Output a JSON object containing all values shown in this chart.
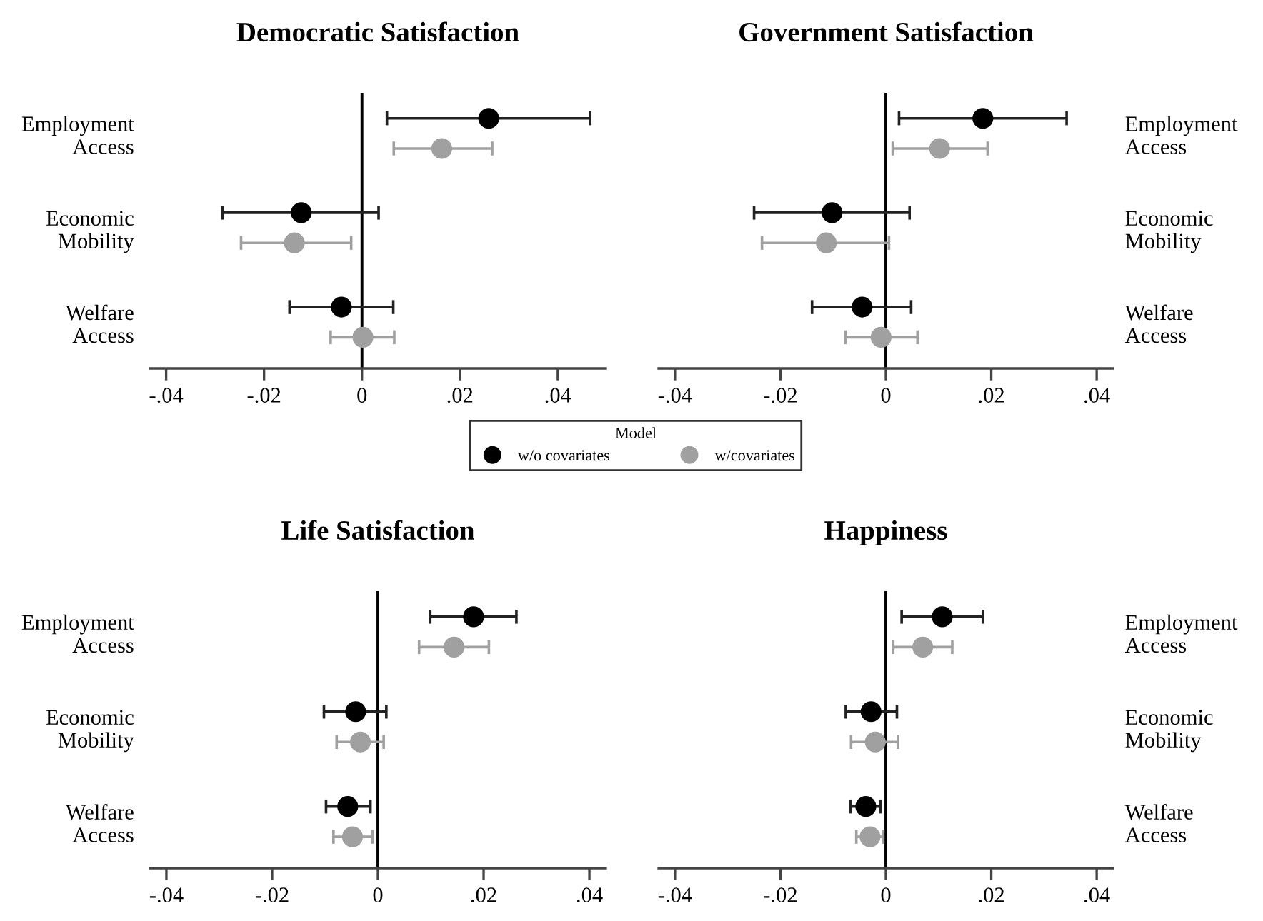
{
  "chart_data": [
    {
      "type": "scatter",
      "orientation": "horizontal",
      "title": "Democratic Satisfaction",
      "categories": [
        "Employment\nAccess",
        "Economic\nMobility",
        "Welfare\nAccess"
      ],
      "xlim": [
        -0.0433,
        0.0498
      ],
      "xticks": [
        {
          "value": -0.04,
          "label": "-.04"
        },
        {
          "value": -0.02,
          "label": "-.02"
        },
        0,
        {
          "value": 0.02,
          "label": ".02"
        },
        {
          "value": 0.04,
          "label": ".04"
        }
      ],
      "ref_lines": [
        {
          "axis": "x",
          "value": 0,
          "color": "#000000"
        }
      ],
      "marker": "circle",
      "grid": false,
      "legend": "bottom",
      "legend_title": "Model",
      "series": [
        {
          "name": "w/o covariates",
          "color": "#000000",
          "values": [
            0.0259,
            -0.0124,
            -0.0042
          ],
          "errors": [
            [
              0.0051,
              0.0466
            ],
            [
              -0.0285,
              0.0034
            ],
            [
              -0.0148,
              0.0064
            ]
          ]
        },
        {
          "name": "w/covariates",
          "color": "#a0a0a0",
          "values": [
            0.0163,
            -0.0138,
            0.0002
          ],
          "errors": [
            [
              0.0065,
              0.0266
            ],
            [
              -0.0247,
              -0.0022
            ],
            [
              -0.0064,
              0.0066
            ]
          ]
        }
      ]
    },
    {
      "type": "scatter",
      "orientation": "horizontal",
      "title": "Government Satisfaction",
      "categories": [
        "Employment\nAccess",
        "Economic\nMobility",
        "Welfare\nAccess"
      ],
      "xlim": [
        -0.0431,
        0.0431
      ],
      "xticks": [
        {
          "value": -0.04,
          "label": "-.04"
        },
        {
          "value": -0.02,
          "label": "-.02"
        },
        0,
        {
          "value": 0.02,
          "label": ".02"
        },
        {
          "value": 0.04,
          "label": ".04"
        }
      ],
      "ref_lines": [
        {
          "axis": "x",
          "value": 0,
          "color": "#000000"
        }
      ],
      "marker": "circle",
      "grid": false,
      "series": [
        {
          "color": "#000000",
          "values": [
            0.0184,
            -0.0102,
            -0.0045
          ],
          "errors": [
            [
              0.0025,
              0.0343
            ],
            [
              -0.025,
              0.0045
            ],
            [
              -0.014,
              0.0048
            ]
          ]
        },
        {
          "color": "#a0a0a0",
          "values": [
            0.0102,
            -0.0113,
            -0.0009
          ],
          "errors": [
            [
              0.0013,
              0.0193
            ],
            [
              -0.0235,
              0.0006
            ],
            [
              -0.0077,
              0.006
            ]
          ]
        }
      ]
    },
    {
      "type": "scatter",
      "orientation": "horizontal",
      "title": "Life Satisfaction",
      "categories": [
        "Employment\nAccess",
        "Economic\nMobility",
        "Welfare\nAccess"
      ],
      "xlim": [
        -0.0431,
        0.0431
      ],
      "xticks": [
        {
          "value": -0.04,
          "label": "-.04"
        },
        {
          "value": -0.02,
          "label": "-.02"
        },
        0,
        {
          "value": 0.02,
          "label": ".02"
        },
        {
          "value": 0.04,
          "label": ".04"
        }
      ],
      "ref_lines": [
        {
          "axis": "x",
          "value": 0,
          "color": "#000000"
        }
      ],
      "marker": "circle",
      "grid": false,
      "series": [
        {
          "color": "#000000",
          "values": [
            0.0181,
            -0.0042,
            -0.0057
          ],
          "errors": [
            [
              0.0099,
              0.0262
            ],
            [
              -0.0102,
              0.0016
            ],
            [
              -0.0098,
              -0.0014
            ]
          ]
        },
        {
          "color": "#a0a0a0",
          "values": [
            0.0144,
            -0.0033,
            -0.0048
          ],
          "errors": [
            [
              0.0078,
              0.021
            ],
            [
              -0.0078,
              0.0011
            ],
            [
              -0.0084,
              -0.001
            ]
          ]
        }
      ]
    },
    {
      "type": "scatter",
      "orientation": "horizontal",
      "title": "Happiness",
      "categories": [
        "Employment\nAccess",
        "Economic\nMobility",
        "Welfare\nAccess"
      ],
      "xlim": [
        -0.0431,
        0.0431
      ],
      "xticks": [
        {
          "value": -0.04,
          "label": "-.04"
        },
        {
          "value": -0.02,
          "label": "-.02"
        },
        0,
        {
          "value": 0.02,
          "label": ".02"
        },
        {
          "value": 0.04,
          "label": ".04"
        }
      ],
      "ref_lines": [
        {
          "axis": "x",
          "value": 0,
          "color": "#000000"
        }
      ],
      "marker": "circle",
      "grid": false,
      "series": [
        {
          "color": "#000000",
          "values": [
            0.0107,
            -0.0028,
            -0.0038
          ],
          "errors": [
            [
              0.003,
              0.0184
            ],
            [
              -0.0076,
              0.0021
            ],
            [
              -0.0067,
              -0.001
            ]
          ]
        },
        {
          "color": "#a0a0a0",
          "values": [
            0.007,
            -0.002,
            -0.003
          ],
          "errors": [
            [
              0.0014,
              0.0126
            ],
            [
              -0.0066,
              0.0023
            ],
            [
              -0.0056,
              -0.0005
            ]
          ]
        }
      ]
    }
  ]
}
